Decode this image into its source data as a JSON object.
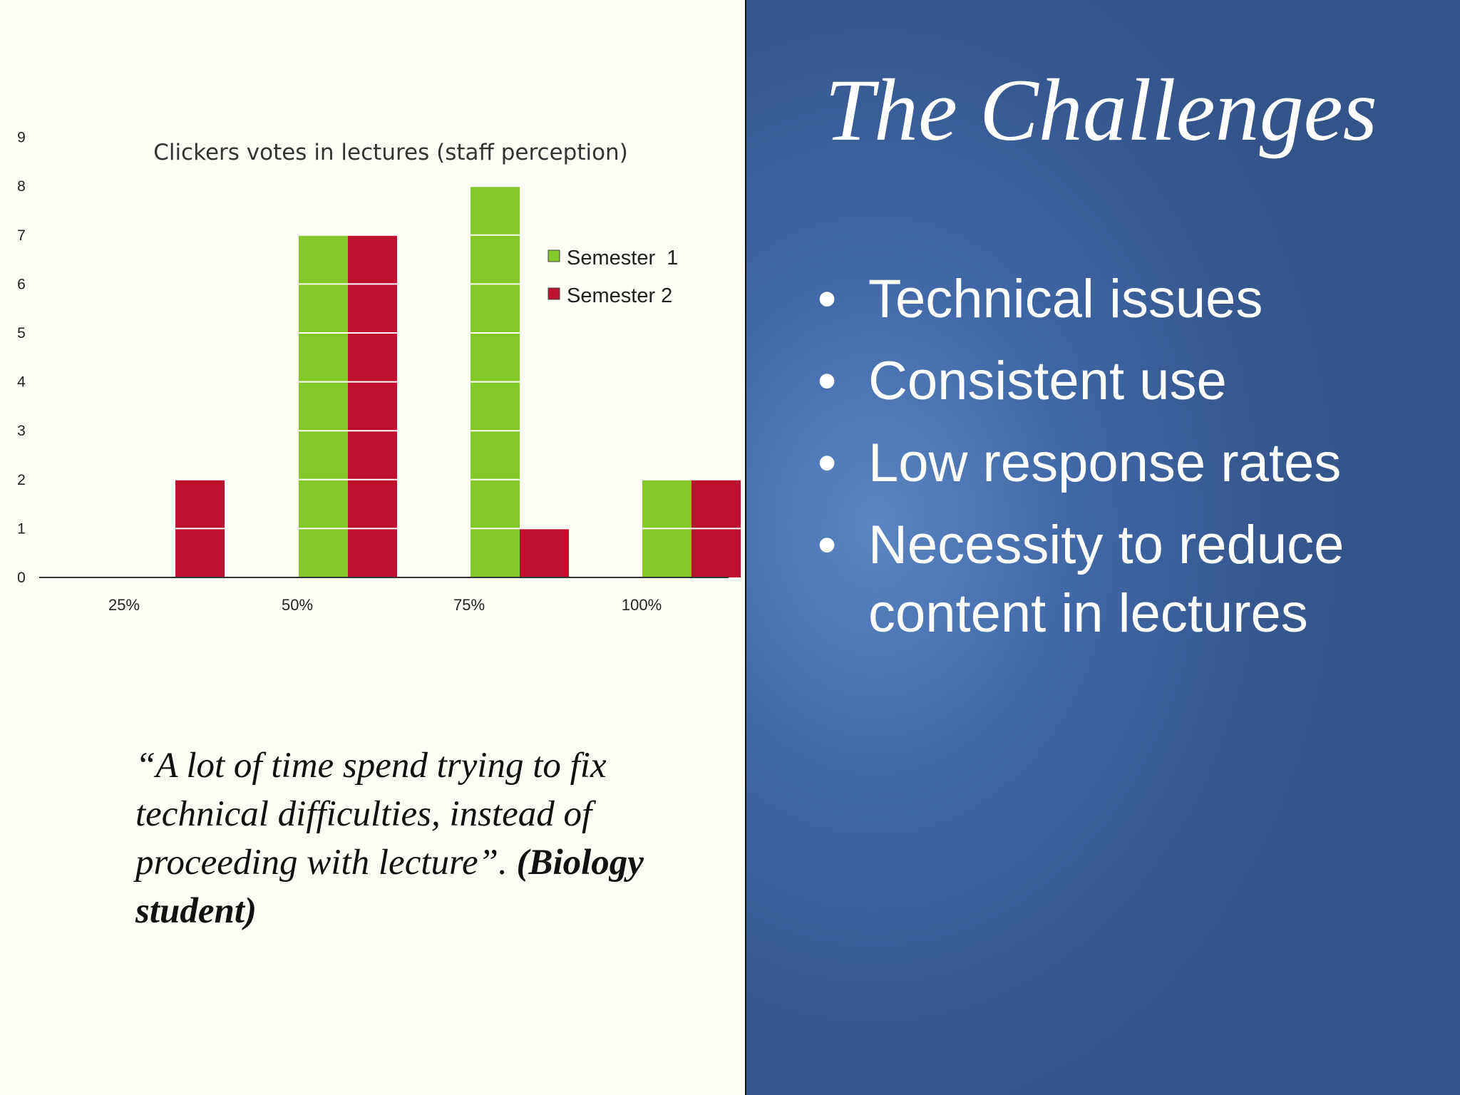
{
  "slide": {
    "title": "The Challenges",
    "bullets": [
      "Technical issues",
      "Consistent use",
      "Low response rates",
      "Necessity to reduce content in lectures"
    ],
    "quote_text": "“A lot of time spend trying to fix technical difficulties, instead of proceeding with lecture”. ",
    "quote_attribution": "(Biology student)"
  },
  "colors": {
    "semester1": "#82c829",
    "semester2": "#be1130",
    "left_background": "#fdfdf6",
    "right_background": "#3b5e98"
  },
  "chart_data": {
    "type": "bar",
    "title": "Clickers votes in lectures (staff perception)",
    "categories": [
      "25%",
      "50%",
      "75%",
      "100%"
    ],
    "series": [
      {
        "name": "Semester  1",
        "values": [
          0,
          7,
          8,
          2
        ]
      },
      {
        "name": "Semester 2",
        "values": [
          2,
          7,
          1,
          2
        ]
      }
    ],
    "yticks": [
      "0",
      "1",
      "2",
      "3",
      "4",
      "5",
      "6",
      "7",
      "8",
      "9"
    ],
    "ylim": [
      0,
      9
    ],
    "xlabel": "",
    "ylabel": "",
    "grid": false,
    "legend_position": "top-right"
  }
}
